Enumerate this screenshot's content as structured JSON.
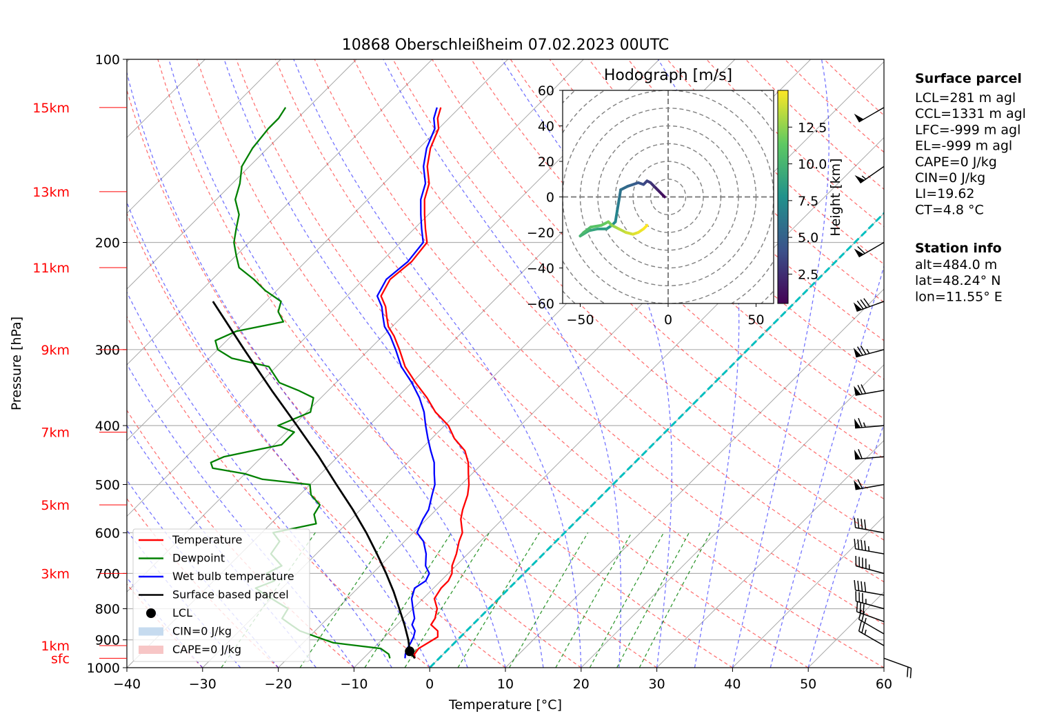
{
  "chart_data": {
    "type": "line",
    "title": "10868 Oberschleißheim 07.02.2023 00UTC",
    "xlabel": "Temperature [°C]",
    "ylabel": "Pressure [hPa]",
    "xlim": [
      -40,
      60
    ],
    "ylim": [
      1000,
      100
    ],
    "y_scale": "log",
    "skew": "45°",
    "x_ticks": [
      "−40",
      "−30",
      "−20",
      "−10",
      "0",
      "10",
      "20",
      "30",
      "40",
      "50",
      "60"
    ],
    "x_tick_values": [
      -40,
      -30,
      -20,
      -10,
      0,
      10,
      20,
      30,
      40,
      50,
      60
    ],
    "y_ticks": [
      "100",
      "200",
      "300",
      "400",
      "500",
      "600",
      "700",
      "800",
      "900",
      "1000"
    ],
    "y_tick_values": [
      100,
      200,
      300,
      400,
      500,
      600,
      700,
      800,
      900,
      1000
    ],
    "height_markers": [
      {
        "label": "sfc",
        "p": 965
      },
      {
        "label": "1km",
        "p": 920
      },
      {
        "label": "3km",
        "p": 700
      },
      {
        "label": "5km",
        "p": 540
      },
      {
        "label": "7km",
        "p": 410
      },
      {
        "label": "9km",
        "p": 300
      },
      {
        "label": "11km",
        "p": 220
      },
      {
        "label": "13km",
        "p": 165
      },
      {
        "label": "15km",
        "p": 120
      }
    ],
    "series": [
      {
        "name": "Temperature",
        "color": "#ff0000",
        "p": [
          965,
          950,
          930,
          910,
          890,
          870,
          850,
          830,
          800,
          770,
          740,
          720,
          700,
          680,
          650,
          620,
          600,
          570,
          550,
          520,
          500,
          480,
          460,
          440,
          420,
          400,
          380,
          360,
          340,
          320,
          300,
          285,
          275,
          265,
          255,
          245,
          230,
          215,
          200,
          190,
          180,
          170,
          160,
          150,
          140,
          130,
          125,
          120
        ],
        "t": [
          -3.2,
          -3.8,
          -4.0,
          -3.5,
          -3.0,
          -3.8,
          -5.5,
          -5.8,
          -6.8,
          -8.5,
          -9.0,
          -9.0,
          -9.5,
          -10.5,
          -11.5,
          -12.8,
          -13.5,
          -15.5,
          -16.5,
          -17.8,
          -19.0,
          -20.5,
          -22.0,
          -24.0,
          -27.0,
          -29.5,
          -33.0,
          -36.0,
          -39.5,
          -43.0,
          -46.0,
          -48.5,
          -50.5,
          -52.0,
          -53.5,
          -55.5,
          -56.5,
          -56.0,
          -56.5,
          -58.5,
          -60.5,
          -62.5,
          -64.0,
          -66.5,
          -68.5,
          -70.0,
          -71.5,
          -72.5
        ]
      },
      {
        "name": "Dewpoint",
        "color": "#008000",
        "p": [
          965,
          950,
          930,
          910,
          890,
          870,
          850,
          830,
          800,
          770,
          740,
          720,
          700,
          680,
          650,
          620,
          600,
          580,
          560,
          540,
          520,
          500,
          490,
          480,
          470,
          460,
          450,
          430,
          410,
          400,
          380,
          360,
          350,
          340,
          320,
          310,
          300,
          290,
          280,
          270,
          260,
          250,
          240,
          230,
          220,
          210,
          200,
          190,
          180,
          170,
          160,
          150,
          140,
          130,
          125,
          120
        ],
        "t": [
          -6.5,
          -7.2,
          -9.0,
          -16.0,
          -19.0,
          -22.0,
          -24.0,
          -26.0,
          -26.5,
          -30.0,
          -33.5,
          -32.0,
          -34.0,
          -33.0,
          -36.0,
          -36.5,
          -38.5,
          -34.0,
          -35.5,
          -36.0,
          -38.5,
          -40.0,
          -47.0,
          -50.0,
          -55.0,
          -56.0,
          -55.0,
          -49.0,
          -49.0,
          -52.0,
          -49.5,
          -51.0,
          -54.0,
          -57.5,
          -61.0,
          -67.0,
          -70.0,
          -71.5,
          -70.0,
          -65.0,
          -67.0,
          -68.0,
          -71.5,
          -74.5,
          -78.0,
          -80.0,
          -82.0,
          -83.5,
          -85.0,
          -87.5,
          -89.0,
          -91.0,
          -92.0,
          -92.5,
          -92.5,
          -93.0
        ]
      },
      {
        "name": "Wet bulb temperature",
        "color": "#0000ff",
        "p": [
          965,
          950,
          930,
          910,
          890,
          870,
          850,
          830,
          800,
          770,
          740,
          720,
          700,
          680,
          650,
          620,
          600,
          570,
          550,
          520,
          500,
          480,
          460,
          440,
          420,
          400,
          380,
          360,
          340,
          320,
          300,
          285,
          275,
          265,
          255,
          245,
          230,
          215,
          200,
          190,
          180,
          170,
          160,
          150,
          140,
          130,
          125,
          120
        ],
        "t": [
          -4.5,
          -5.0,
          -5.5,
          -5.8,
          -6.2,
          -6.8,
          -8.0,
          -8.5,
          -10.0,
          -11.5,
          -12.5,
          -12.0,
          -12.5,
          -14.0,
          -15.5,
          -17.5,
          -19.5,
          -20.5,
          -21.0,
          -22.5,
          -23.5,
          -25.0,
          -26.5,
          -28.5,
          -30.5,
          -32.5,
          -34.5,
          -37.0,
          -40.0,
          -43.5,
          -46.5,
          -49.0,
          -51.0,
          -52.5,
          -54.0,
          -56.0,
          -57.0,
          -56.5,
          -57.0,
          -59.0,
          -61.0,
          -63.0,
          -64.5,
          -67.0,
          -69.0,
          -70.5,
          -72.0,
          -73.0
        ]
      },
      {
        "name": "Surface based parcel",
        "color": "#000000",
        "p": [
          965,
          940,
          900,
          850,
          800,
          750,
          700,
          650,
          600,
          550,
          500,
          450,
          400,
          350,
          300,
          250
        ],
        "t": [
          -3.2,
          -4.8,
          -6.5,
          -9.0,
          -11.8,
          -14.8,
          -18.2,
          -22.0,
          -26.2,
          -31.0,
          -36.5,
          -42.5,
          -49.5,
          -57.5,
          -66.5,
          -77.0
        ]
      }
    ],
    "lcl": {
      "name": "LCL",
      "t": -4.8,
      "p": 940
    },
    "legend": {
      "position": "lower-left",
      "entries": [
        "Temperature",
        "Dewpoint",
        "Wet bulb temperature",
        "Surface based parcel",
        "LCL",
        "CIN=0 J/kg",
        "CAPE=0 J/kg"
      ]
    },
    "surface_parcel": {
      "heading": "Surface parcel",
      "lines": [
        "LCL=281 m agl",
        "CCL=1331 m agl",
        "LFC=-999 m agl",
        "EL=-999 m agl",
        "CAPE=0 J/kg",
        "CIN=0 J/kg",
        "LI=19.62",
        "CT=4.8 °C"
      ]
    },
    "station_info": {
      "heading": "Station info",
      "lines": [
        "alt=484.0 m",
        "lat=48.24° N",
        "lon=11.55° E"
      ]
    },
    "hodograph": {
      "type": "line",
      "title": "Hodograph [m/s]",
      "xlim": [
        -60,
        60
      ],
      "ylim": [
        -60,
        60
      ],
      "x_ticks": [
        "−50",
        "0",
        "50"
      ],
      "x_tick_values": [
        -50,
        0,
        50
      ],
      "y_ticks": [
        "−60",
        "−40",
        "−20",
        "0",
        "20",
        "40",
        "60"
      ],
      "y_tick_values": [
        -60,
        -40,
        -20,
        0,
        20,
        40,
        60
      ],
      "colorbar_label": "Height [km]",
      "colorbar_ticks": [
        "2.5",
        "5.0",
        "7.5",
        "10.0",
        "12.5"
      ],
      "colorbar_values": [
        2.5,
        5.0,
        7.5,
        10.0,
        12.5
      ],
      "colorbar_range": [
        0.5,
        15
      ],
      "u": [
        -2,
        -4,
        -6,
        -8,
        -10,
        -12,
        -14,
        -17,
        -20,
        -23,
        -27,
        -28,
        -29,
        -30,
        -32,
        -35,
        -40,
        -45,
        -50,
        -48,
        -44,
        -38,
        -34,
        -32,
        -30,
        -28,
        -24,
        -20,
        -17,
        -14,
        -12
      ],
      "v": [
        0,
        2,
        4,
        6,
        8,
        9,
        7,
        8,
        7,
        6,
        4,
        -2,
        -8,
        -14,
        -16,
        -18,
        -18,
        -19,
        -22,
        -20,
        -17,
        -16,
        -14,
        -16,
        -17,
        -18,
        -20,
        -21,
        -20,
        -18,
        -16
      ],
      "h": [
        0.5,
        1.0,
        1.5,
        2.0,
        2.5,
        3.0,
        3.5,
        4.0,
        4.5,
        5.0,
        5.5,
        6.0,
        6.5,
        7.0,
        7.5,
        8.0,
        8.5,
        9.0,
        9.5,
        10.0,
        10.5,
        11.0,
        11.5,
        12.0,
        12.5,
        13.0,
        13.5,
        14.0,
        14.3,
        14.6,
        15.0
      ]
    },
    "wind_barbs": [
      {
        "p": 965,
        "speed_kt": 20,
        "dir_deg": 110
      },
      {
        "p": 920,
        "speed_kt": 25,
        "dir_deg": 300
      },
      {
        "p": 880,
        "speed_kt": 25,
        "dir_deg": 300
      },
      {
        "p": 840,
        "speed_kt": 30,
        "dir_deg": 290
      },
      {
        "p": 800,
        "speed_kt": 35,
        "dir_deg": 285
      },
      {
        "p": 760,
        "speed_kt": 40,
        "dir_deg": 280
      },
      {
        "p": 700,
        "speed_kt": 45,
        "dir_deg": 285
      },
      {
        "p": 650,
        "speed_kt": 45,
        "dir_deg": 280
      },
      {
        "p": 600,
        "speed_kt": 40,
        "dir_deg": 280
      },
      {
        "p": 500,
        "speed_kt": 60,
        "dir_deg": 260
      },
      {
        "p": 450,
        "speed_kt": 60,
        "dir_deg": 265
      },
      {
        "p": 400,
        "speed_kt": 65,
        "dir_deg": 265
      },
      {
        "p": 350,
        "speed_kt": 70,
        "dir_deg": 260
      },
      {
        "p": 300,
        "speed_kt": 75,
        "dir_deg": 255
      },
      {
        "p": 250,
        "speed_kt": 80,
        "dir_deg": 250
      },
      {
        "p": 200,
        "speed_kt": 60,
        "dir_deg": 240
      },
      {
        "p": 150,
        "speed_kt": 55,
        "dir_deg": 235
      },
      {
        "p": 120,
        "speed_kt": 50,
        "dir_deg": 240
      }
    ],
    "colors": {
      "temperature": "#ff0000",
      "dewpoint": "#008000",
      "wetbulb": "#0000ff",
      "parcel": "#000000",
      "dry_adiabat": "#ff0000",
      "moist_adiabat": "#0000ff",
      "mixing_ratio": "#008000",
      "zero_isotherm": "#00bfbf",
      "cin_fill": "#c6dbef",
      "cape_fill": "#f7c6c6"
    }
  }
}
